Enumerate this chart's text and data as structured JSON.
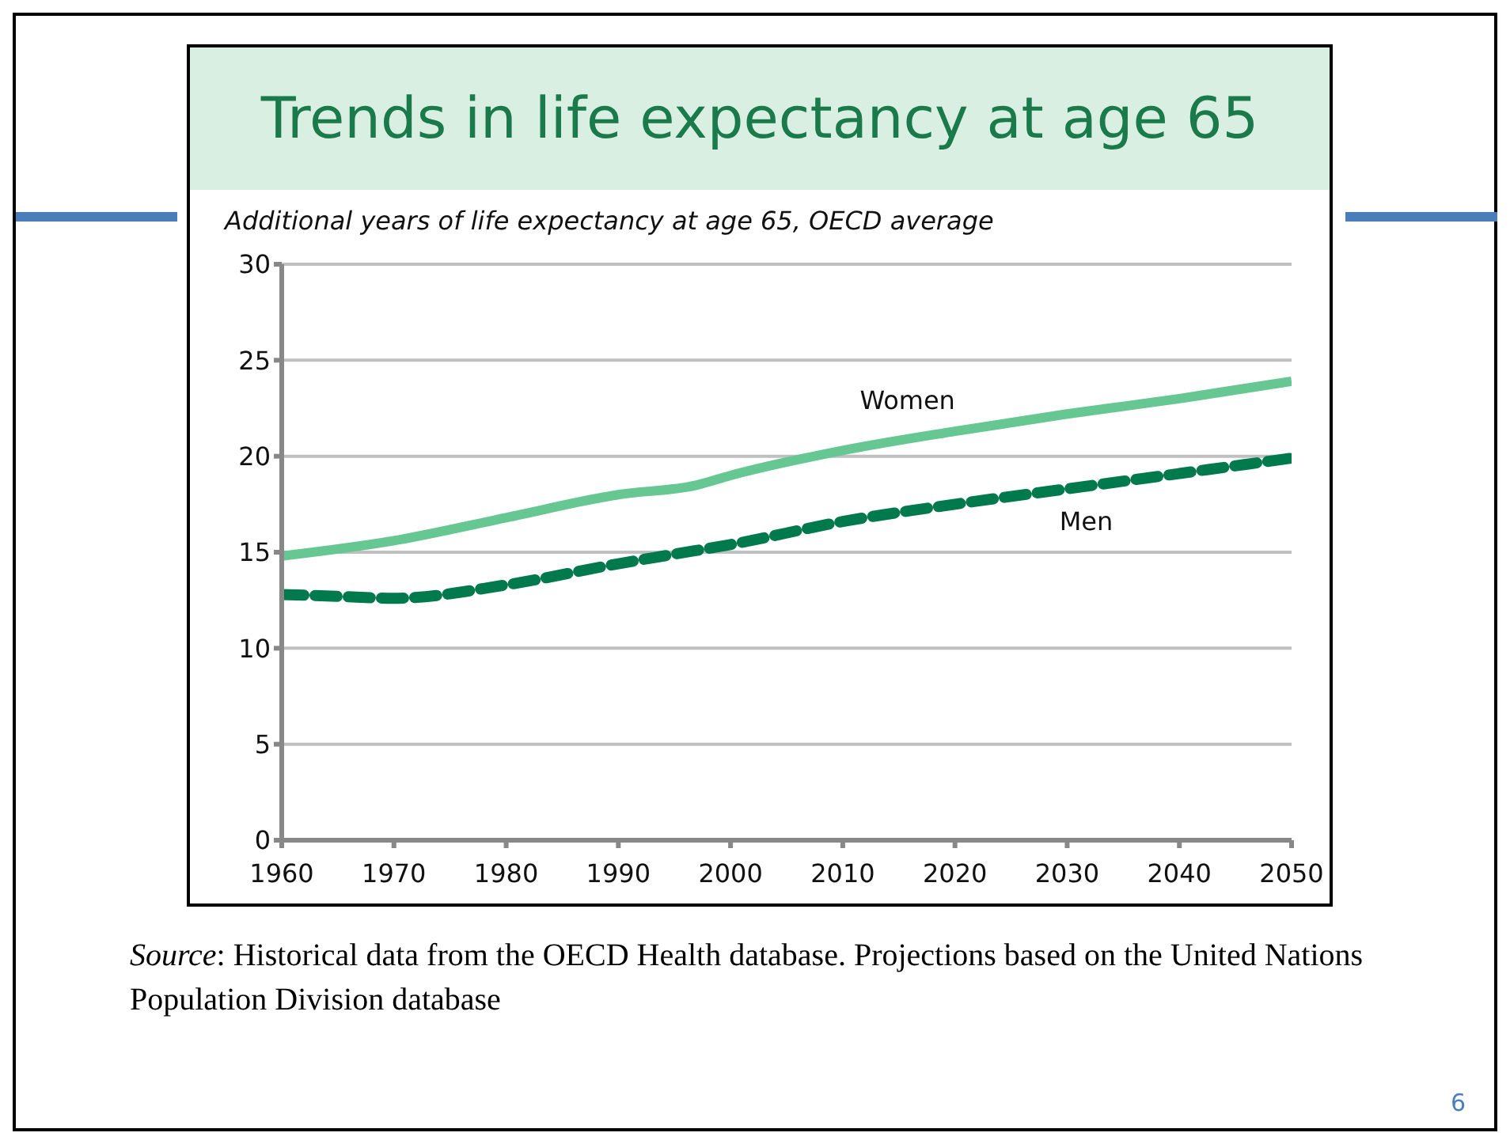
{
  "chart_data": {
    "type": "line",
    "title": "Trends in life expectancy at age 65",
    "subtitle": "Additional years of life expectancy at age 65, OECD average",
    "series": [
      {
        "name": "Women",
        "color": "#66c792",
        "line_style": "solid",
        "x": [
          1960,
          1970,
          1980,
          1990,
          1997,
          2000,
          2010,
          2020,
          2030,
          2040,
          2050
        ],
        "values": [
          14.8,
          15.6,
          16.8,
          18.0,
          18.5,
          19.0,
          20.3,
          21.3,
          22.2,
          23.0,
          23.9
        ]
      },
      {
        "name": "Men",
        "color": "#007a4d",
        "line_style": "dashed",
        "x": [
          1960,
          1965,
          1970,
          1980,
          1990,
          1995,
          2000,
          2010,
          2020,
          2030,
          2040,
          2050
        ],
        "values": [
          12.8,
          12.7,
          12.6,
          13.3,
          14.4,
          14.9,
          15.4,
          16.6,
          17.5,
          18.3,
          19.1,
          19.9
        ]
      }
    ],
    "xlim": [
      1960,
      2050
    ],
    "xticks": [
      1960,
      1970,
      1980,
      1990,
      2000,
      2010,
      2020,
      2030,
      2040,
      2050
    ],
    "ylim": [
      0,
      30
    ],
    "yticks": [
      0,
      5,
      10,
      15,
      20,
      25,
      30
    ],
    "grid": "y",
    "legend": false,
    "marker": "none",
    "annotations": [
      "Source: Historical data from the OECD Health database. Projections based on the United Nations Population Division database",
      "6"
    ]
  }
}
